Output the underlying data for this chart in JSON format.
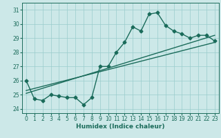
{
  "xlabel": "Humidex (Indice chaleur)",
  "ylabel": "",
  "bg_color": "#cce8e8",
  "line_color": "#1a6b5a",
  "grid_color": "#99cccc",
  "xlim": [
    -0.5,
    23.5
  ],
  "ylim": [
    23.7,
    31.5
  ],
  "yticks": [
    24,
    25,
    26,
    27,
    28,
    29,
    30,
    31
  ],
  "xticks": [
    0,
    1,
    2,
    3,
    4,
    5,
    6,
    7,
    8,
    9,
    10,
    11,
    12,
    13,
    14,
    15,
    16,
    17,
    18,
    19,
    20,
    21,
    22,
    23
  ],
  "curve1_x": [
    0,
    1,
    2,
    3,
    4,
    5,
    6,
    7,
    8,
    9,
    10,
    11,
    12,
    13,
    14,
    15,
    16,
    17,
    18,
    19,
    20,
    21,
    22,
    23
  ],
  "curve1_y": [
    26.0,
    24.7,
    24.6,
    25.0,
    24.9,
    24.8,
    24.8,
    24.3,
    24.8,
    27.0,
    27.0,
    28.0,
    28.7,
    29.8,
    29.5,
    30.7,
    30.8,
    29.9,
    29.5,
    29.3,
    29.0,
    29.2,
    29.2,
    28.8
  ],
  "line2_x": [
    0,
    23
  ],
  "line2_y": [
    25.1,
    29.2
  ],
  "line3_x": [
    0,
    23
  ],
  "line3_y": [
    25.3,
    28.7
  ],
  "marker_size": 2.5,
  "line_width": 1.0,
  "tick_labelsize": 5.5,
  "xlabel_fontsize": 6.5
}
